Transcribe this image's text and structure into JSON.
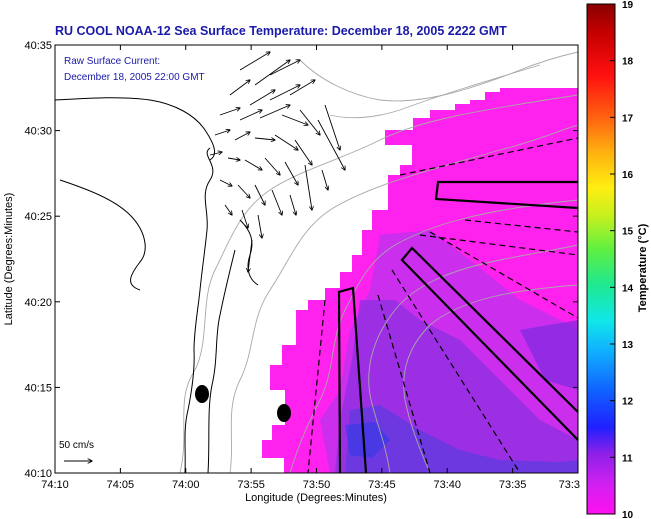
{
  "chart_data": {
    "type": "heatmap",
    "title": "RU COOL  NOAA-12  Sea Surface Temperature:  December 18, 2005 2222 GMT",
    "annotation": [
      "Raw Surface Current:",
      "December 18, 2005 22:00 GMT"
    ],
    "xlabel": "Longitude (Degrees:Minutes)",
    "ylabel": "Latitude (Degrees:Minutes)",
    "x_ticks": [
      "74:10",
      "74:05",
      "74:00",
      "73:55",
      "73:50",
      "73:45",
      "73:40",
      "73:35",
      "73:3"
    ],
    "y_ticks": [
      "40:35",
      "40:30",
      "40:25",
      "40:20",
      "40:15",
      "40:10"
    ],
    "xlim": [
      "74:10",
      "73:30"
    ],
    "ylim": [
      "40:10",
      "40:35"
    ],
    "colorbar": {
      "label": "Temperature (°C)",
      "ticks": [
        "19",
        "18",
        "17",
        "16",
        "15",
        "14",
        "13",
        "12",
        "11",
        "10"
      ],
      "range": [
        10,
        19
      ]
    },
    "scale_label": "50 cm/s",
    "colors": {
      "title_text": "#1a1aa8",
      "sst_dominant": "#ff22ee",
      "sst_cool": "#7a2ae0",
      "coast": "#000000",
      "bathymetry": "#a8a8a8"
    }
  }
}
